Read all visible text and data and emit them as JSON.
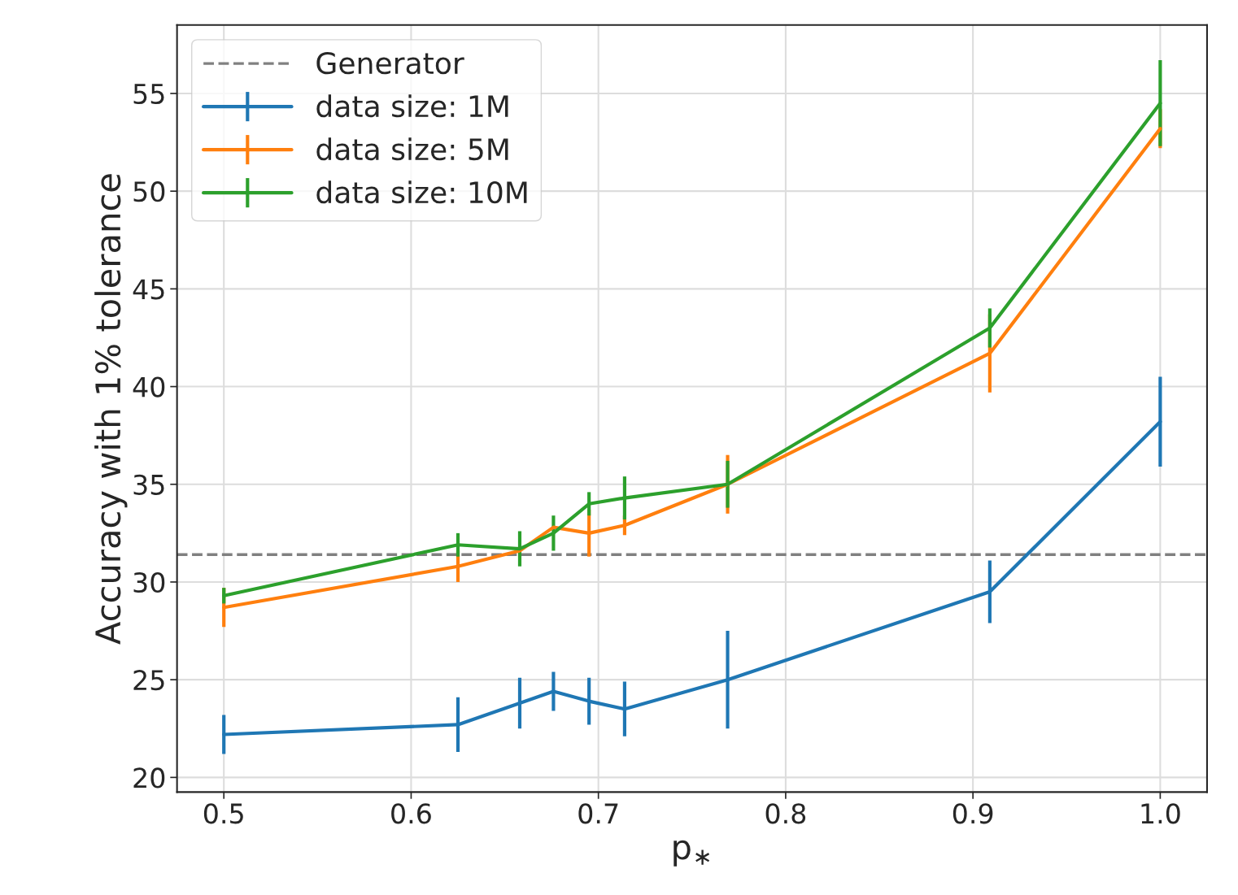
{
  "chart_data": {
    "type": "line",
    "xlabel": "p$_{∗}$",
    "ylabel": "Accuracy with 1% tolerance",
    "x": [
      0.5,
      0.625,
      0.658,
      0.676,
      0.695,
      0.714,
      0.769,
      0.909,
      1.0
    ],
    "series": [
      {
        "name": "data size: 1M",
        "color": "#1f77b4",
        "values": [
          22.2,
          22.7,
          23.8,
          24.4,
          23.9,
          23.5,
          25.0,
          29.5,
          38.2
        ],
        "errors": [
          1.0,
          1.4,
          1.3,
          1.0,
          1.2,
          1.4,
          2.5,
          1.6,
          2.3
        ]
      },
      {
        "name": "data size: 5M",
        "color": "#ff7f0e",
        "values": [
          28.7,
          30.8,
          31.6,
          32.8,
          32.5,
          32.9,
          35.0,
          41.7,
          53.2
        ],
        "errors": [
          1.0,
          0.8,
          null,
          null,
          1.2,
          0.5,
          1.5,
          2.0,
          1.0
        ]
      },
      {
        "name": "data size: 10M",
        "color": "#2ca02c",
        "values": [
          29.3,
          31.9,
          31.7,
          32.5,
          34.0,
          34.3,
          35.0,
          43.0,
          54.5
        ],
        "errors": [
          0.4,
          0.6,
          0.9,
          0.9,
          0.6,
          1.1,
          1.2,
          1.0,
          2.2
        ]
      }
    ],
    "ref_lines": [
      {
        "axis": "y",
        "value": 31.4,
        "label": "Generator",
        "color": "#808080",
        "line_style": "dashed"
      }
    ],
    "xlim": [
      0.475,
      1.025
    ],
    "xticks": [
      {
        "value": 0.5,
        "label": "0.5"
      },
      {
        "value": 0.6,
        "label": "0.6"
      },
      {
        "value": 0.7,
        "label": "0.7"
      },
      {
        "value": 0.8,
        "label": "0.8"
      },
      {
        "value": 0.9,
        "label": "0.9"
      },
      {
        "value": 1.0,
        "label": "1.0"
      }
    ],
    "ylim": [
      19.25,
      58.5
    ],
    "yticks": [
      20,
      25,
      30,
      35,
      40,
      45,
      50,
      55
    ],
    "grid": true,
    "legend": "top left",
    "marker": "none",
    "line_style": "solid"
  }
}
